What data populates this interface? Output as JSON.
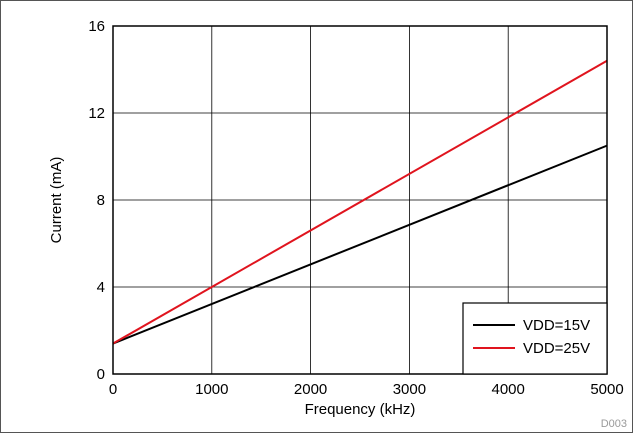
{
  "chart_data": {
    "type": "line",
    "xlabel": "Frequency (kHz)",
    "ylabel": "Current (mA)",
    "xlim": [
      0,
      5000
    ],
    "ylim": [
      0,
      16
    ],
    "x_ticks": [
      0,
      1000,
      2000,
      3000,
      4000,
      5000
    ],
    "y_ticks": [
      0,
      4,
      8,
      12,
      16
    ],
    "grid": true,
    "legend_position": "bottom-right",
    "series": [
      {
        "name": "VDD=15V",
        "color": "#000000",
        "x": [
          0,
          5000
        ],
        "y": [
          1.4,
          10.5
        ]
      },
      {
        "name": "VDD=25V",
        "color": "#e0141e",
        "x": [
          0,
          5000
        ],
        "y": [
          1.4,
          14.4
        ]
      }
    ],
    "footnote": "D003"
  }
}
